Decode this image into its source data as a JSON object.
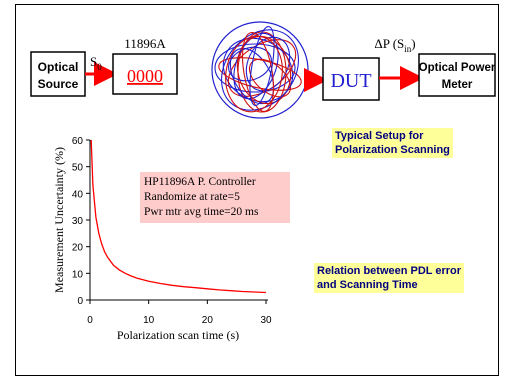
{
  "setup": {
    "source_line1": "Optical",
    "source_line2": "Source",
    "s0_main": "S",
    "s0_sub": "0",
    "controller_label": "11896A",
    "controller_display": "0000",
    "dut": "DUT",
    "dp_main": "ΔP (S",
    "dp_sub": "in",
    "dp_close": ")",
    "meter_line1": "Optical Power",
    "meter_line2": "Meter",
    "colors": {
      "fiber_blue": "#2020d0",
      "fiber_red": "#d01010",
      "arrow": "#ff0000",
      "dut_text": "#2020d0"
    }
  },
  "notes": {
    "setup_line1": "Typical Setup for",
    "setup_line2": "Polarization Scanning",
    "relation_line1": "Relation between PDL error",
    "relation_line2": "and Scanning Time"
  },
  "annotation": {
    "line1": "HP11896A P. Controller",
    "line2": "Randomize at rate=5",
    "line3": "Pwr mtr avg time=20 ms"
  },
  "chart_data": {
    "type": "line",
    "xlabel": "Polarization scan time (s)",
    "ylabel": "Measurement Uncertainty (%)",
    "xlim": [
      0,
      30
    ],
    "ylim": [
      0,
      60
    ],
    "xticks": [
      "0",
      "10",
      "20",
      "30"
    ],
    "yticks": [
      "0",
      "10",
      "20",
      "30",
      "40",
      "50",
      "60"
    ],
    "grid": false,
    "series": [
      {
        "color": "#ff0000",
        "x": [
          0.2,
          0.5,
          1,
          1.5,
          2,
          2.5,
          3,
          4,
          5,
          6,
          7,
          8,
          10,
          12,
          14,
          16,
          18,
          20,
          22,
          24,
          26,
          28,
          30
        ],
        "y": [
          60,
          43,
          31,
          25,
          21,
          18,
          16,
          13,
          11.3,
          10,
          9,
          8.2,
          7,
          6.2,
          5.5,
          5,
          4.6,
          4.2,
          3.8,
          3.5,
          3.2,
          3,
          2.8
        ]
      }
    ]
  }
}
